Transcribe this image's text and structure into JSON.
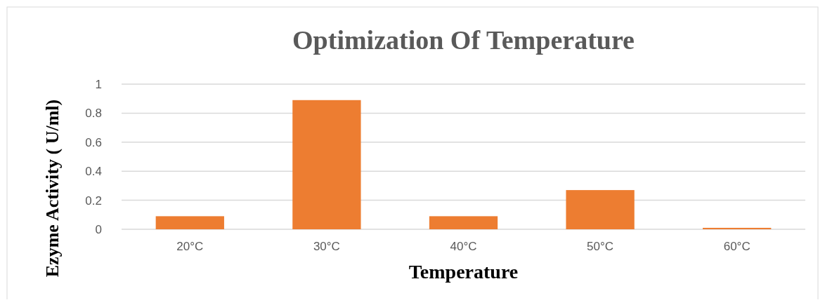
{
  "chart_data": {
    "type": "bar",
    "title": "Optimization Of Temperature",
    "xlabel": "Temperature",
    "ylabel": "Ezyme Activity ( U/ml)",
    "categories": [
      "20°C",
      "30°C",
      "40°C",
      "50°C",
      "60°C"
    ],
    "values": [
      0.09,
      0.89,
      0.09,
      0.27,
      0.01
    ],
    "color": "#ed7d31",
    "ylim": [
      0,
      1
    ],
    "yticks": [
      0,
      0.2,
      0.4,
      0.6,
      0.8,
      1
    ],
    "grid": "y"
  }
}
